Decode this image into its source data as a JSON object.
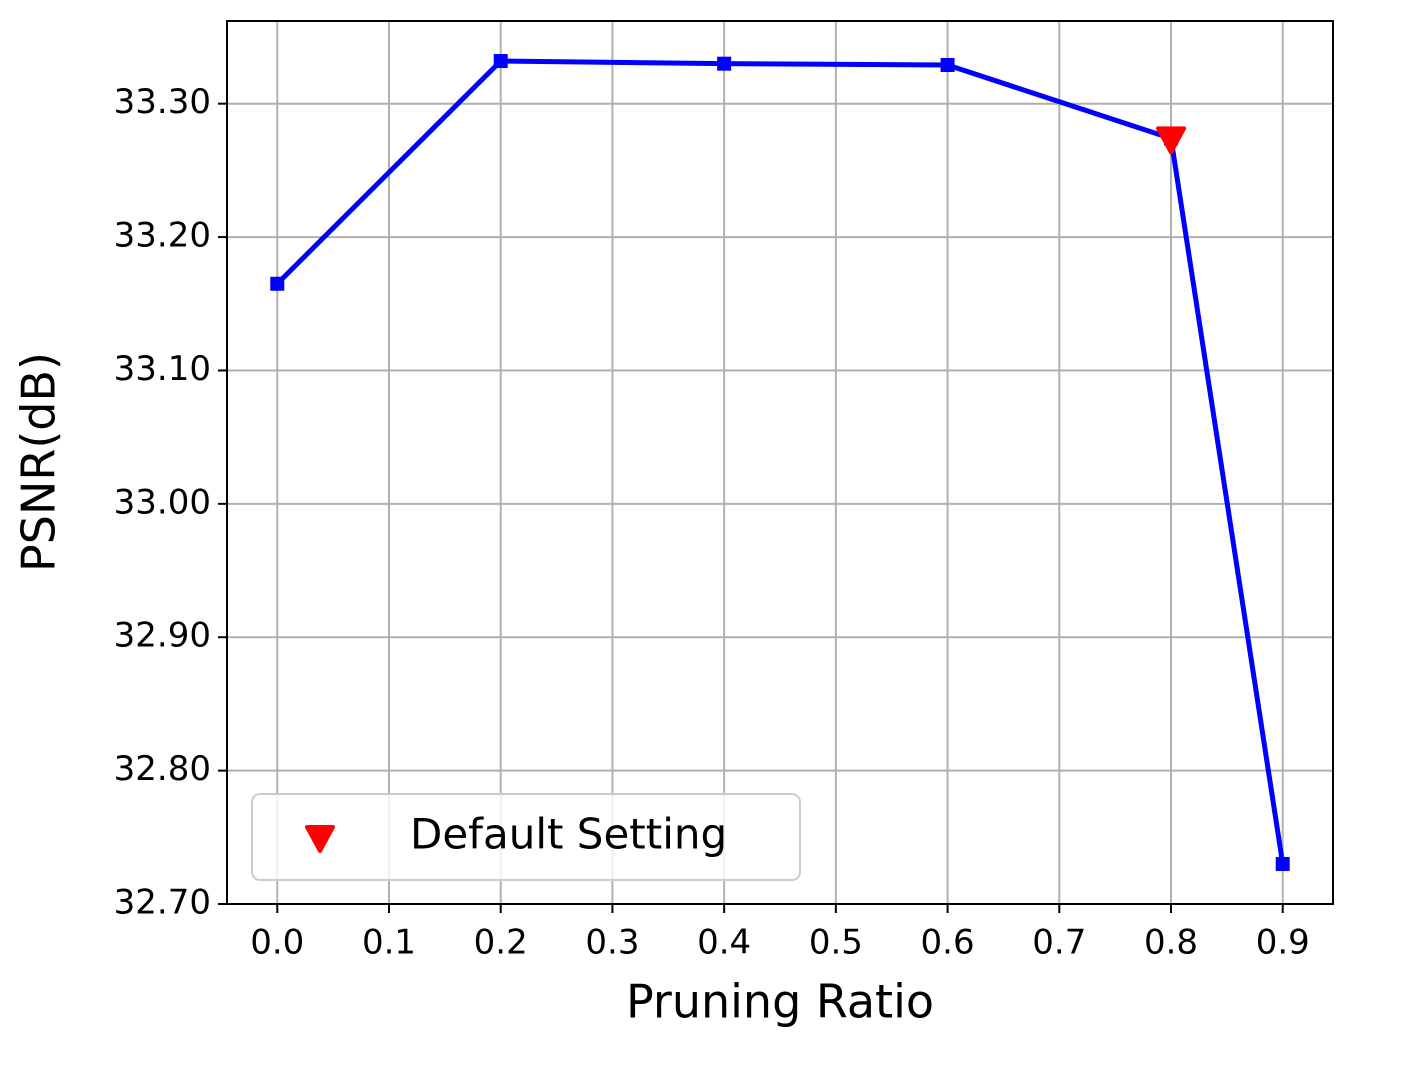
{
  "chart_data": {
    "type": "line",
    "x_label": "Pruning Ratio",
    "y_label": "PSNR(dB)",
    "x": [
      0.0,
      0.2,
      0.4,
      0.6,
      0.8,
      0.9
    ],
    "series": [
      {
        "color": "#0000ff",
        "marker": "square",
        "values": [
          33.165,
          33.332,
          33.33,
          33.329,
          33.274,
          32.73
        ]
      },
      {
        "name": "Default Setting",
        "color": "#ff0000",
        "marker": "triangle-down",
        "values": [
          null,
          null,
          null,
          null,
          33.274,
          null
        ]
      }
    ],
    "xlim": [
      -0.045,
      0.945
    ],
    "ylim": [
      32.7,
      33.362
    ],
    "xticks": [
      {
        "value": 0.0,
        "label": "0.0"
      },
      0.1,
      0.2,
      0.3,
      0.4,
      0.5,
      0.6,
      0.7,
      0.8,
      0.9
    ],
    "yticks": [
      {
        "value": 32.7,
        "label": "32.70"
      },
      {
        "value": 32.8,
        "label": "32.80"
      },
      {
        "value": 32.9,
        "label": "32.90"
      },
      {
        "value": 33.0,
        "label": "33.00"
      },
      {
        "value": 33.1,
        "label": "33.10"
      },
      {
        "value": 33.2,
        "label": "33.20"
      },
      {
        "value": 33.3,
        "label": "33.30"
      }
    ],
    "grid": true,
    "legend": "lower left"
  }
}
